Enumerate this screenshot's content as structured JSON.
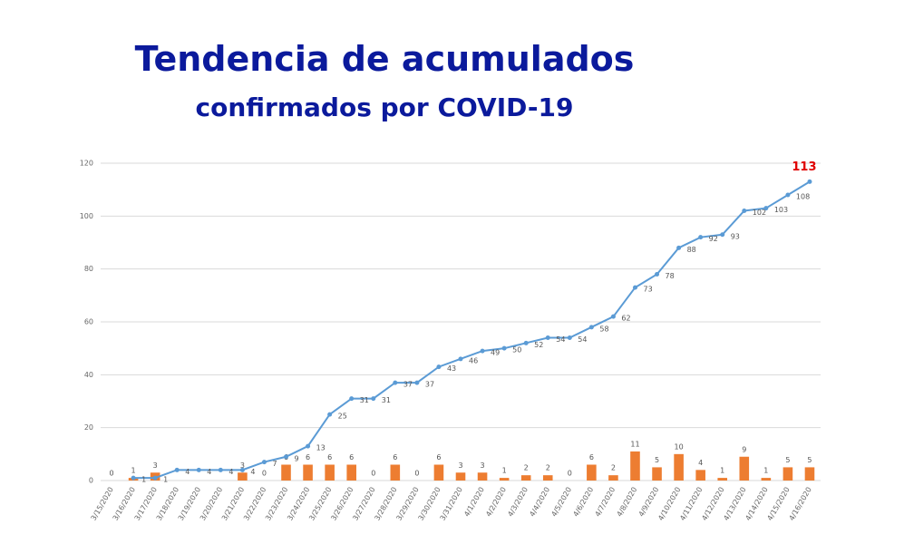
{
  "chart_data": {
    "type": "bar_line",
    "title": "Tendencia de acumulados",
    "subtitle": "confirmados por COVID-19",
    "categories": [
      "3/15/2020",
      "3/16/2020",
      "3/17/2020",
      "3/18/2020",
      "3/19/2020",
      "3/20/2020",
      "3/21/2020",
      "3/22/2020",
      "3/23/2020",
      "3/24/2020",
      "3/25/2020",
      "3/26/2020",
      "3/27/2020",
      "3/28/2020",
      "3/29/2020",
      "3/30/2020",
      "3/31/2020",
      "4/1/2020",
      "4/2/2020",
      "4/3/2020",
      "4/4/2020",
      "4/5/2020",
      "4/6/2020",
      "4/7/2020",
      "4/8/2020",
      "4/9/2020",
      "4/10/2020",
      "4/11/2020",
      "4/12/2020",
      "4/13/2020",
      "4/14/2020",
      "4/15/2020",
      "4/16/2020"
    ],
    "series": [
      {
        "kind": "bar",
        "color": "#ed7d31",
        "values": [
          0,
          1,
          3,
          null,
          null,
          null,
          3,
          0,
          6,
          6,
          6,
          6,
          0,
          6,
          0,
          6,
          3,
          3,
          1,
          2,
          2,
          0,
          6,
          2,
          11,
          5,
          10,
          4,
          1,
          9,
          1,
          5,
          5
        ]
      },
      {
        "kind": "line",
        "color": "#5b9bd5",
        "values": [
          null,
          1,
          1,
          4,
          4,
          4,
          4,
          7,
          9,
          13,
          25,
          31,
          31,
          37,
          37,
          43,
          46,
          49,
          50,
          52,
          54,
          54,
          58,
          62,
          73,
          78,
          88,
          92,
          93,
          102,
          103,
          108,
          113
        ]
      }
    ],
    "last_label_color": "#e00000",
    "ylim": [
      0,
      120
    ],
    "yticks": [
      0,
      20,
      40,
      60,
      80,
      100,
      120
    ],
    "grid": true
  }
}
